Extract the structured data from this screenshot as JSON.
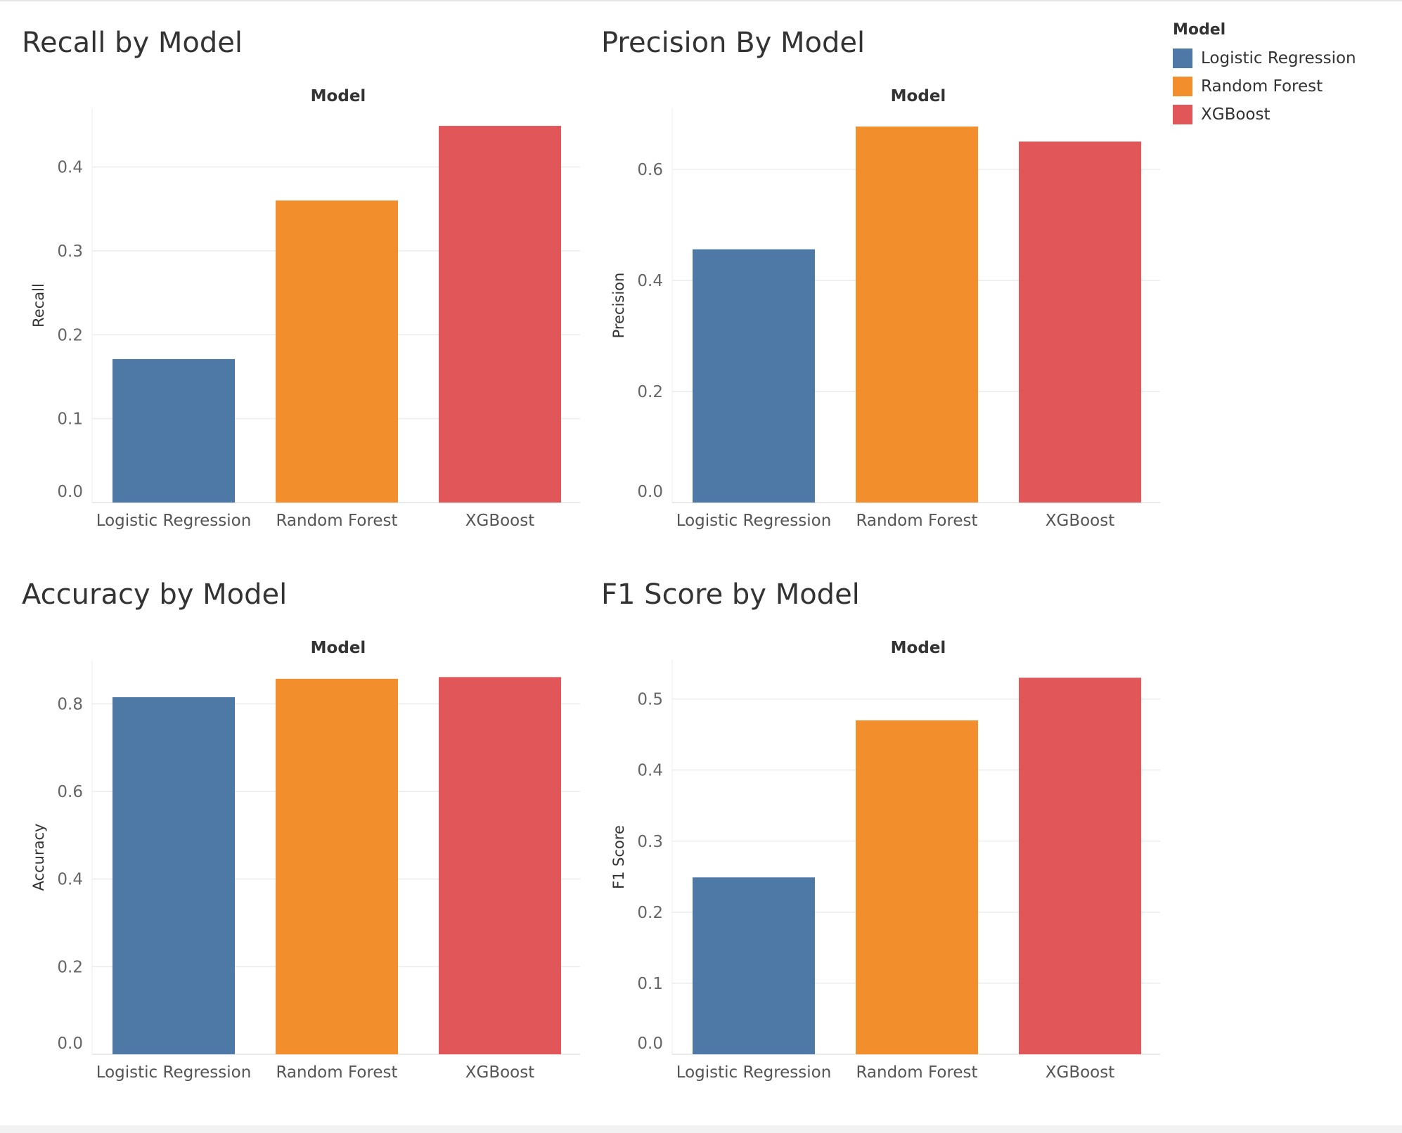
{
  "legend": {
    "title": "Model",
    "items": [
      {
        "label": "Logistic Regression",
        "color": "#4e79a7"
      },
      {
        "label": "Random Forest",
        "color": "#f28e2b"
      },
      {
        "label": "XGBoost",
        "color": "#e15759"
      }
    ]
  },
  "chart_data": [
    {
      "type": "bar",
      "title": "Recall by Model",
      "column_header": "Model",
      "ylabel": "Recall",
      "categories": [
        "Logistic Regression",
        "Random Forest",
        "XGBoost"
      ],
      "values": [
        0.171,
        0.36,
        0.449
      ],
      "colors": [
        "#4e79a7",
        "#f28e2b",
        "#e15759"
      ],
      "ylim": [
        0,
        0.47
      ],
      "yticks": [
        0.0,
        0.1,
        0.2,
        0.3,
        0.4
      ],
      "tick_labels": [
        "0.0",
        "0.1",
        "0.2",
        "0.3",
        "0.4"
      ],
      "grid": true
    },
    {
      "type": "bar",
      "title": "Precision By Model",
      "column_header": "Model",
      "ylabel": "Precision",
      "categories": [
        "Logistic Regression",
        "Random Forest",
        "XGBoost"
      ],
      "values": [
        0.456,
        0.677,
        0.65
      ],
      "colors": [
        "#4e79a7",
        "#f28e2b",
        "#e15759"
      ],
      "ylim": [
        0,
        0.71
      ],
      "yticks": [
        0.0,
        0.2,
        0.4,
        0.6
      ],
      "tick_labels": [
        "0.0",
        "0.2",
        "0.4",
        "0.6"
      ],
      "grid": true
    },
    {
      "type": "bar",
      "title": "Accuracy by Model",
      "column_header": "Model",
      "ylabel": "Accuracy",
      "categories": [
        "Logistic Regression",
        "Random Forest",
        "XGBoost"
      ],
      "values": [
        0.815,
        0.857,
        0.861
      ],
      "colors": [
        "#4e79a7",
        "#f28e2b",
        "#e15759"
      ],
      "ylim": [
        0,
        0.9
      ],
      "yticks": [
        0.0,
        0.2,
        0.4,
        0.6,
        0.8
      ],
      "tick_labels": [
        "0.0",
        "0.2",
        "0.4",
        "0.6",
        "0.8"
      ],
      "grid": true
    },
    {
      "type": "bar",
      "title": "F1 Score by Model",
      "column_header": "Model",
      "ylabel": "F1 Score",
      "categories": [
        "Logistic Regression",
        "Random Forest",
        "XGBoost"
      ],
      "values": [
        0.249,
        0.47,
        0.53
      ],
      "colors": [
        "#4e79a7",
        "#f28e2b",
        "#e15759"
      ],
      "ylim": [
        0,
        0.555
      ],
      "yticks": [
        0.0,
        0.1,
        0.2,
        0.3,
        0.4,
        0.5
      ],
      "tick_labels": [
        "0.0",
        "0.1",
        "0.2",
        "0.3",
        "0.4",
        "0.5"
      ],
      "grid": true
    }
  ]
}
